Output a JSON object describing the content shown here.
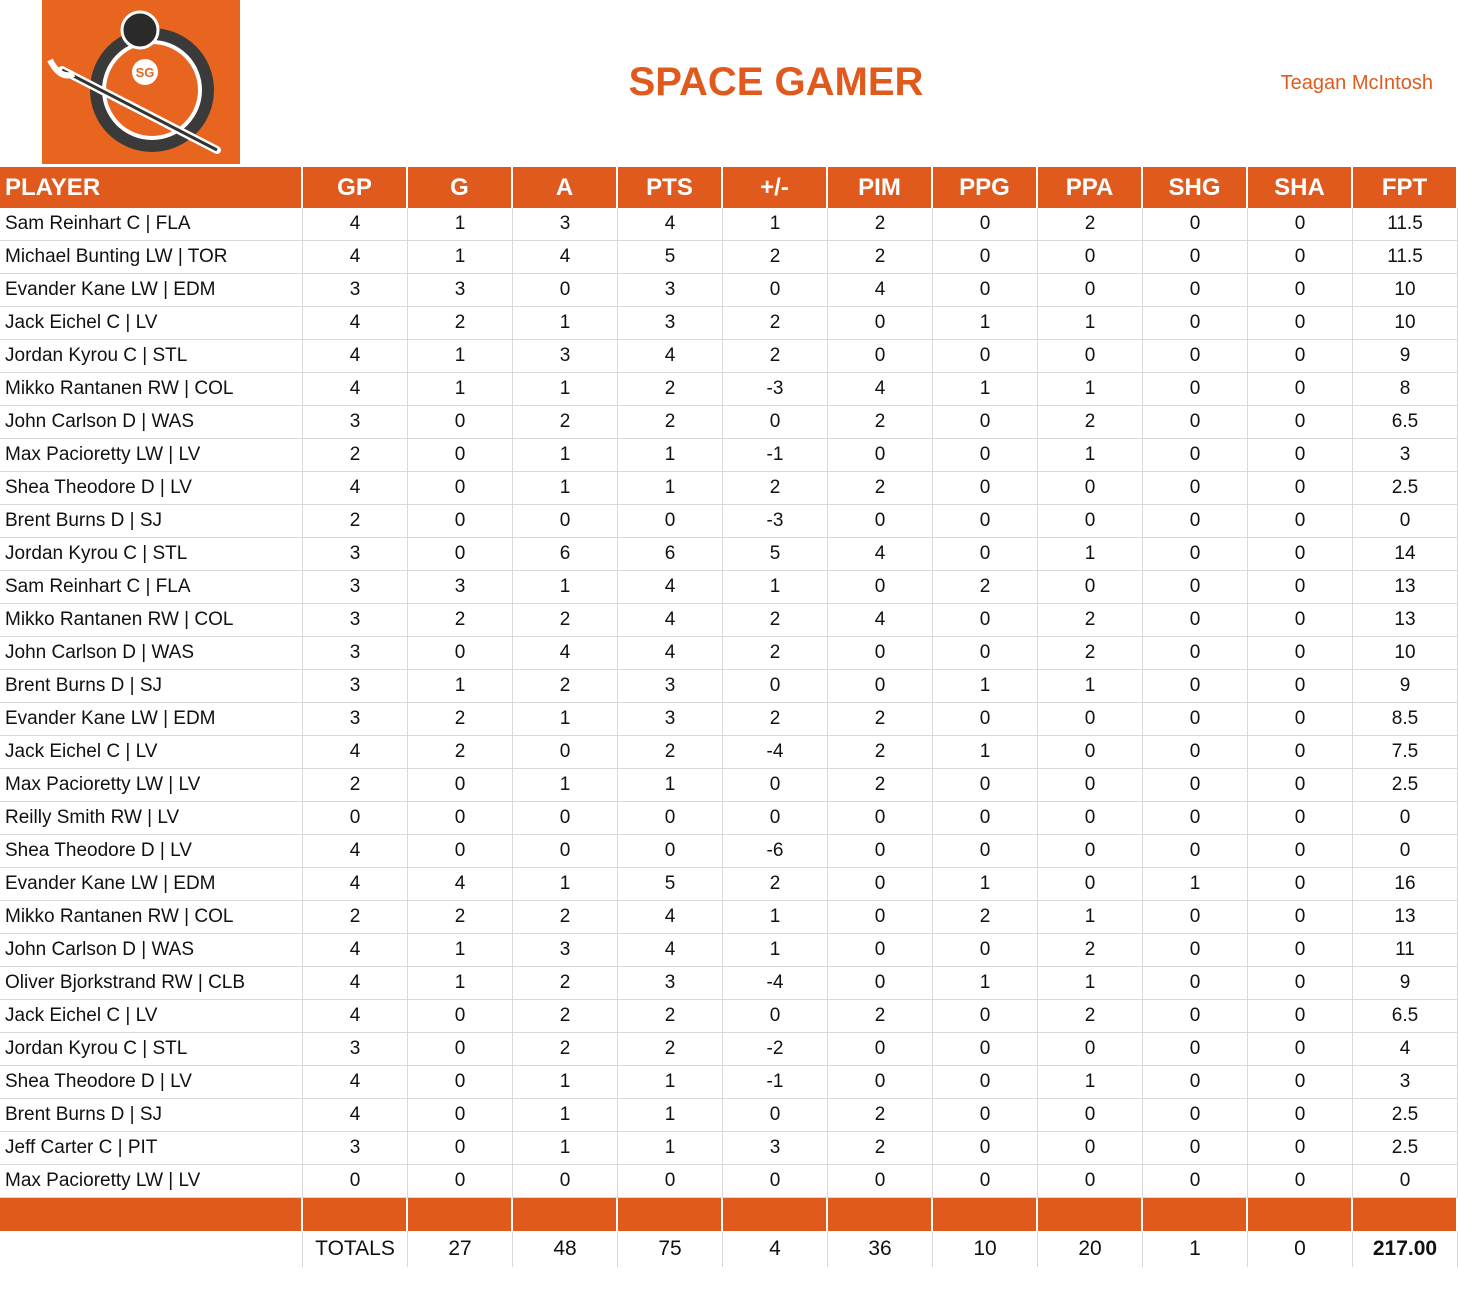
{
  "header": {
    "title": "SPACE GAMER",
    "owner": "Teagan McIntosh"
  },
  "table": {
    "columns": [
      "PLAYER",
      "GP",
      "G",
      "A",
      "PTS",
      "+/-",
      "PIM",
      "PPG",
      "PPA",
      "SHG",
      "SHA",
      "FPT"
    ],
    "rows": [
      [
        "Sam Reinhart C | FLA",
        4,
        1,
        3,
        4,
        1,
        2,
        0,
        2,
        0,
        0,
        11.5
      ],
      [
        "Michael Bunting LW | TOR",
        4,
        1,
        4,
        5,
        2,
        2,
        0,
        0,
        0,
        0,
        11.5
      ],
      [
        "Evander Kane LW | EDM",
        3,
        3,
        0,
        3,
        0,
        4,
        0,
        0,
        0,
        0,
        10
      ],
      [
        "Jack Eichel C | LV",
        4,
        2,
        1,
        3,
        2,
        0,
        1,
        1,
        0,
        0,
        10
      ],
      [
        "Jordan Kyrou C | STL",
        4,
        1,
        3,
        4,
        2,
        0,
        0,
        0,
        0,
        0,
        9
      ],
      [
        "Mikko Rantanen RW | COL",
        4,
        1,
        1,
        2,
        -3,
        4,
        1,
        1,
        0,
        0,
        8
      ],
      [
        "John Carlson D | WAS",
        3,
        0,
        2,
        2,
        0,
        2,
        0,
        2,
        0,
        0,
        6.5
      ],
      [
        "Max Pacioretty LW | LV",
        2,
        0,
        1,
        1,
        -1,
        0,
        0,
        1,
        0,
        0,
        3
      ],
      [
        "Shea Theodore D | LV",
        4,
        0,
        1,
        1,
        2,
        2,
        0,
        0,
        0,
        0,
        2.5
      ],
      [
        "Brent Burns D | SJ",
        2,
        0,
        0,
        0,
        -3,
        0,
        0,
        0,
        0,
        0,
        0
      ],
      [
        "Jordan Kyrou C | STL",
        3,
        0,
        6,
        6,
        5,
        4,
        0,
        1,
        0,
        0,
        14
      ],
      [
        "Sam Reinhart C | FLA",
        3,
        3,
        1,
        4,
        1,
        0,
        2,
        0,
        0,
        0,
        13
      ],
      [
        "Mikko Rantanen RW | COL",
        3,
        2,
        2,
        4,
        2,
        4,
        0,
        2,
        0,
        0,
        13
      ],
      [
        "John Carlson D | WAS",
        3,
        0,
        4,
        4,
        2,
        0,
        0,
        2,
        0,
        0,
        10
      ],
      [
        "Brent Burns D | SJ",
        3,
        1,
        2,
        3,
        0,
        0,
        1,
        1,
        0,
        0,
        9
      ],
      [
        "Evander Kane LW | EDM",
        3,
        2,
        1,
        3,
        2,
        2,
        0,
        0,
        0,
        0,
        8.5
      ],
      [
        "Jack Eichel C | LV",
        4,
        2,
        0,
        2,
        -4,
        2,
        1,
        0,
        0,
        0,
        7.5
      ],
      [
        "Max Pacioretty LW | LV",
        2,
        0,
        1,
        1,
        0,
        2,
        0,
        0,
        0,
        0,
        2.5
      ],
      [
        "Reilly Smith RW | LV",
        0,
        0,
        0,
        0,
        0,
        0,
        0,
        0,
        0,
        0,
        0
      ],
      [
        "Shea Theodore D | LV",
        4,
        0,
        0,
        0,
        -6,
        0,
        0,
        0,
        0,
        0,
        0
      ],
      [
        "Evander Kane LW | EDM",
        4,
        4,
        1,
        5,
        2,
        0,
        1,
        0,
        1,
        0,
        16
      ],
      [
        "Mikko Rantanen RW | COL",
        2,
        2,
        2,
        4,
        1,
        0,
        2,
        1,
        0,
        0,
        13
      ],
      [
        "John Carlson D | WAS",
        4,
        1,
        3,
        4,
        1,
        0,
        0,
        2,
        0,
        0,
        11
      ],
      [
        "Oliver Bjorkstrand RW | CLB",
        4,
        1,
        2,
        3,
        -4,
        0,
        1,
        1,
        0,
        0,
        9
      ],
      [
        "Jack Eichel C | LV",
        4,
        0,
        2,
        2,
        0,
        2,
        0,
        2,
        0,
        0,
        6.5
      ],
      [
        "Jordan Kyrou C | STL",
        3,
        0,
        2,
        2,
        -2,
        0,
        0,
        0,
        0,
        0,
        4
      ],
      [
        "Shea Theodore D | LV",
        4,
        0,
        1,
        1,
        -1,
        0,
        0,
        1,
        0,
        0,
        3
      ],
      [
        "Brent Burns D | SJ",
        4,
        0,
        1,
        1,
        0,
        2,
        0,
        0,
        0,
        0,
        2.5
      ],
      [
        "Jeff Carter C | PIT",
        3,
        0,
        1,
        1,
        3,
        2,
        0,
        0,
        0,
        0,
        2.5
      ],
      [
        "Max Pacioretty LW | LV",
        0,
        0,
        0,
        0,
        0,
        0,
        0,
        0,
        0,
        0,
        0
      ]
    ],
    "totals": {
      "label": "TOTALS",
      "values": [
        27,
        48,
        75,
        4,
        36,
        10,
        20,
        1,
        0,
        "217.00"
      ]
    }
  }
}
